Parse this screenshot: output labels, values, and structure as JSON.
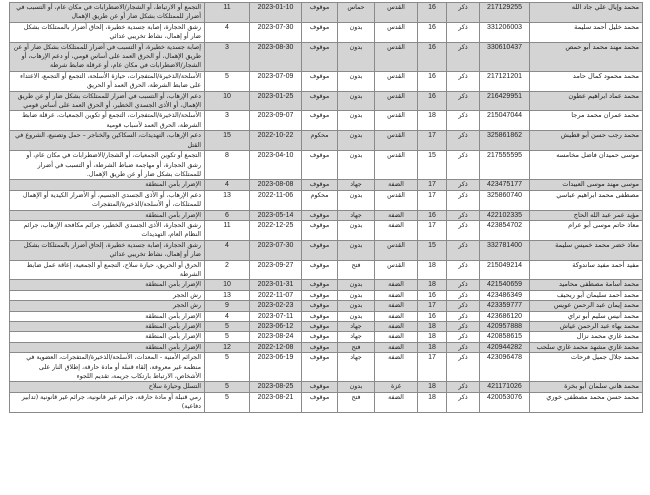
{
  "rows": [
    {
      "name": "محمد وإيال علي جاد الله",
      "id": "217129255",
      "gender": "ذكر",
      "age": "16",
      "region": "القدس",
      "affiliation": "حماس",
      "status": "موقوف",
      "date": "2023-01-10",
      "count": "11",
      "charges": "التجمع أو الارتباط، أو الشجار/الاضطرابات في مكان عام، أو التسبب في أضرار للممتلكات بشكل ضار أو عن طريق الإهمال"
    },
    {
      "name": "محمد خليل أحمد سليمة",
      "id": "331206003",
      "gender": "ذكر",
      "age": "16",
      "region": "القدس",
      "affiliation": "بدون",
      "status": "موقوف",
      "date": "2023-07-30",
      "count": "4",
      "charges": "رشق الحجارة، إصابة جسدية خطيرة، إلحاق أضرار بالممتلكات بشكل ضار أو إهمال، نشاط تخريبي عدائي"
    },
    {
      "name": "محمد مهند محمد أبو حمص",
      "id": "330610437",
      "gender": "ذكر",
      "age": "16",
      "region": "القدس",
      "affiliation": "بدون",
      "status": "موقوف",
      "date": "2023-08-30",
      "count": "3",
      "charges": "إصابة جسدية خطيرة، أو التسبب في أضرار للممتلكات بشكل ضار أو عن طريق الإهمال، أو الحرق العمد على أساس قومي، أو دعم الإرهاب، أو الشجار/الاضطرابات في مكان عام، أو عرقلة ضابط شرطة"
    },
    {
      "name": "محمد محمود كمال حامد",
      "id": "217121201",
      "gender": "ذكر",
      "age": "16",
      "region": "القدس",
      "affiliation": "بدون",
      "status": "موقوف",
      "date": "2023-07-09",
      "count": "5",
      "charges": "الأسلحة/الذخيرة/المتفجرات، حيازة الأسلحة، التجمع أو التجمع، الاعتداء على ضابط الشرطة، الحرق العمد أو الحريق"
    },
    {
      "name": "محمد عماد ابراهيم عطون",
      "id": "216429951",
      "gender": "ذكر",
      "age": "16",
      "region": "القدس",
      "affiliation": "بدون",
      "status": "موقوف",
      "date": "2023-01-25",
      "count": "10",
      "charges": "دعم الإرهاب، أو التسبب في أضرار للممتلكات بشكل ضار أو عن طريق الإهمال، أو الأذى الجسدي الخطير، أو الحرق العمد على أساس قومي"
    },
    {
      "name": "محمد عمران محمد مرجا",
      "id": "215047044",
      "gender": "ذكر",
      "age": "18",
      "region": "القدس",
      "affiliation": "بدون",
      "status": "موقوف",
      "date": "2023-09-07",
      "count": "3",
      "charges": "الأسلحة/الذخيرة/المتفجرات، التجمع أو تكوين الجمعيات، عرقلة ضابط الشرطة، الحرق العمد لأسباب قومية"
    },
    {
      "name": "محمد رجب حسن أبو قطيش",
      "id": "325861862",
      "gender": "ذكر",
      "age": "17",
      "region": "القدس",
      "affiliation": "بدون",
      "status": "محكوم",
      "date": "2022-10-22",
      "count": "15",
      "charges": "دعم الإرهاب، التهديدات، السكاكين والخناجر – حمل وتصنيع، الشروع في القتل"
    },
    {
      "name": "موسى حميدان فاضل مخامسه",
      "id": "217555595",
      "gender": "ذكر",
      "age": "15",
      "region": "القدس",
      "affiliation": "بدون",
      "status": "موقوف",
      "date": "2023-04-10",
      "count": "8",
      "charges": "التجمع أو تكوين الجمعيات، أو الشجار/الاضطرابات في مكان عام، أو رشق الحجارة، أو مهاجمة ضباط الشرطة، أو التسبب في أضرار للممتلكات بشكل ضار أو عن طريق الإهمال."
    },
    {
      "name": "موسى مهند موسى العبيدات",
      "id": "423475177",
      "gender": "ذكر",
      "age": "17",
      "region": "الضفة",
      "affiliation": "جهاد",
      "status": "موقوف",
      "date": "2023-08-08",
      "count": "4",
      "charges": "الإضرار بأمن المنطقة"
    },
    {
      "name": "مصطفى محمد ابراهيم عباسي",
      "id": "325860740",
      "gender": "ذكر",
      "age": "17",
      "region": "القدس",
      "affiliation": "بدون",
      "status": "محكوم",
      "date": "2022-11-06",
      "count": "13",
      "charges": "دعم الإرهاب، أو الأذى الجسدي الجسيم، أو الأضرار الكيدية أو الإهمال للممتلكات، أو الأسلحة/الذخيرة/المتفجرات"
    },
    {
      "name": "مؤيد عمر عبد الله الحاج",
      "id": "422102335",
      "gender": "ذكر",
      "age": "16",
      "region": "الضفة",
      "affiliation": "جهاد",
      "status": "موقوف",
      "date": "2023-05-14",
      "count": "6",
      "charges": "الإضرار بأمن المنطقة"
    },
    {
      "name": "معاذ حاتم موسى أبو عرام",
      "id": "423854702",
      "gender": "ذكر",
      "age": "17",
      "region": "الضفة",
      "affiliation": "بدون",
      "status": "موقوف",
      "date": "2022-12-25",
      "count": "11",
      "charges": "رشق الحجارة، الأذى الجسدي الخطير، جرائم مكافحة الإرهاب، جرائم النظام العام، التهديدات"
    },
    {
      "name": "معاذ خضر محمد خميس سليمة",
      "id": "332781400",
      "gender": "ذكر",
      "age": "15",
      "region": "القدس",
      "affiliation": "بدون",
      "status": "موقوف",
      "date": "2023-07-30",
      "count": "4",
      "charges": "رشق الحجارة، إصابة جسدية خطيرة، إلحاق أضرار بالممتلكات بشكل ضار أو إهمال، نشاط تخريبي عدائي"
    },
    {
      "name": "مفيد أحمد مفيد ساندوكة",
      "id": "215049214",
      "gender": "ذكر",
      "age": "18",
      "region": "القدس",
      "affiliation": "فتح",
      "status": "موقوف",
      "date": "2023-09-27",
      "count": "2",
      "charges": "الحرق أو الحريق، حيازة سلاح، التجمع أو الجمعية، إعاقة عمل ضابط الشرطة"
    },
    {
      "name": "محمد أسامة مصطفى محاميد",
      "id": "421540659",
      "gender": "ذكر",
      "age": "18",
      "region": "الضفة",
      "affiliation": "بدون",
      "status": "موقوف",
      "date": "2023-01-31",
      "count": "10",
      "charges": "الإضرار بأمن المنطقة"
    },
    {
      "name": "محمد أحمد سليمان أبو ريحيف",
      "id": "423486349",
      "gender": "ذكر",
      "age": "16",
      "region": "الضفة",
      "affiliation": "بدون",
      "status": "موقوف",
      "date": "2022-11-07",
      "count": "13",
      "charges": "رش الحجر"
    },
    {
      "name": "محمد إيمان عبد الرحمن عويس",
      "id": "423359777",
      "gender": "ذكر",
      "age": "17",
      "region": "الضفة",
      "affiliation": "بدون",
      "status": "موقوف",
      "date": "2023-02-23",
      "count": "9",
      "charges": "رش الحجر"
    },
    {
      "name": "محمد أنيس سليم أبو تراي",
      "id": "423686120",
      "gender": "ذكر",
      "age": "16",
      "region": "الضفة",
      "affiliation": "بدون",
      "status": "موقوف",
      "date": "2023-07-11",
      "count": "4",
      "charges": "الإضرار بأمن المنطقة"
    },
    {
      "name": "محمد بهاء عبد الرحمن عياش",
      "id": "420957888",
      "gender": "ذكر",
      "age": "18",
      "region": "الضفة",
      "affiliation": "جهاد",
      "status": "موقوف",
      "date": "2023-06-12",
      "count": "5",
      "charges": "الإضرار بأمن المنطقة"
    },
    {
      "name": "محمد غازي محمد نزال",
      "id": "420858615",
      "gender": "ذكر",
      "age": "18",
      "region": "الضفة",
      "affiliation": "جهاد",
      "status": "موقوف",
      "date": "2023-08-24",
      "count": "5",
      "charges": "الإضرار بأمن المنطقة"
    },
    {
      "name": "محمد غازي مشهد محمد غازي سلحب",
      "id": "420944282",
      "gender": "ذكر",
      "age": "18",
      "region": "الضفة",
      "affiliation": "فتح",
      "status": "موقوف",
      "date": "2022-12-08",
      "count": "12",
      "charges": "الإضرار بأمن المنطقة"
    },
    {
      "name": "محمد جلال جميل فرحات",
      "id": "423096478",
      "gender": "ذكر",
      "age": "17",
      "region": "الضفة",
      "affiliation": "جهاد",
      "status": "موقوف",
      "date": "2023-06-19",
      "count": "5",
      "charges": "الجرائم الأمنية - المعدات، الأسلحة/الذخيرة/المتفجرات، العضوية في منظمة غير معروفة، إلقاء قنبلة أو مادة حارقة، إطلاق النار على الأشخاص، الارتباط بارتكاب جريمة، تقديم اللجوء"
    },
    {
      "name": "محمد هاني سلمان أبو بخرة",
      "id": "421171026",
      "gender": "ذكر",
      "age": "18",
      "region": "غزة",
      "affiliation": "بدون",
      "status": "موقوف",
      "date": "2023-08-25",
      "count": "5",
      "charges": "التسلل وحيازة سلاح"
    },
    {
      "name": "محمد حسن محمد مصطفى خوري",
      "id": "420053076",
      "gender": "ذكر",
      "age": "18",
      "region": "الضفة",
      "affiliation": "فتح",
      "status": "موقوف",
      "date": "2023-08-21",
      "count": "5",
      "charges": "رمي قنبلة أو مادة حارقة، جرائم غير قانونية، جرائم غير قانونية (تدابير دفاعية)"
    }
  ]
}
